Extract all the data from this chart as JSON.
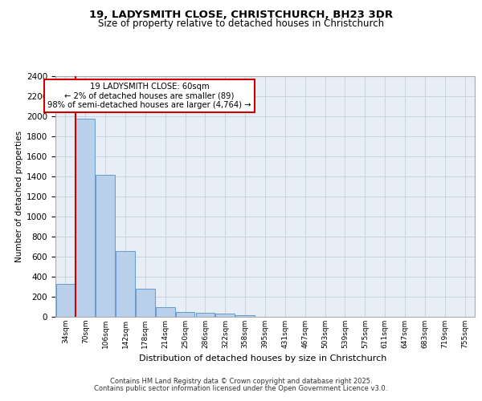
{
  "title_line1": "19, LADYSMITH CLOSE, CHRISTCHURCH, BH23 3DR",
  "title_line2": "Size of property relative to detached houses in Christchurch",
  "xlabel": "Distribution of detached houses by size in Christchurch",
  "ylabel": "Number of detached properties",
  "bar_values": [
    325,
    1980,
    1415,
    655,
    280,
    100,
    48,
    38,
    35,
    20,
    0,
    0,
    0,
    0,
    0,
    0,
    0,
    0,
    0,
    0,
    0
  ],
  "bar_labels": [
    "34sqm",
    "70sqm",
    "106sqm",
    "142sqm",
    "178sqm",
    "214sqm",
    "250sqm",
    "286sqm",
    "322sqm",
    "358sqm",
    "395sqm",
    "431sqm",
    "467sqm",
    "503sqm",
    "539sqm",
    "575sqm",
    "611sqm",
    "647sqm",
    "683sqm",
    "719sqm",
    "755sqm"
  ],
  "bar_color": "#b8d0ea",
  "bar_edge_color": "#6699cc",
  "grid_color": "#c8d4e0",
  "bg_color": "#e8eef5",
  "annotation_line1": "19 LADYSMITH CLOSE: 60sqm",
  "annotation_line2": "← 2% of detached houses are smaller (89)",
  "annotation_line3": "98% of semi-detached houses are larger (4,764) →",
  "annotation_box_facecolor": "#ffffff",
  "annotation_box_edgecolor": "#cc0000",
  "vline_color": "#cc0000",
  "vline_x_idx": 1,
  "ylim_max": 2400,
  "ytick_step": 200,
  "footer_line1": "Contains HM Land Registry data © Crown copyright and database right 2025.",
  "footer_line2": "Contains public sector information licensed under the Open Government Licence v3.0."
}
